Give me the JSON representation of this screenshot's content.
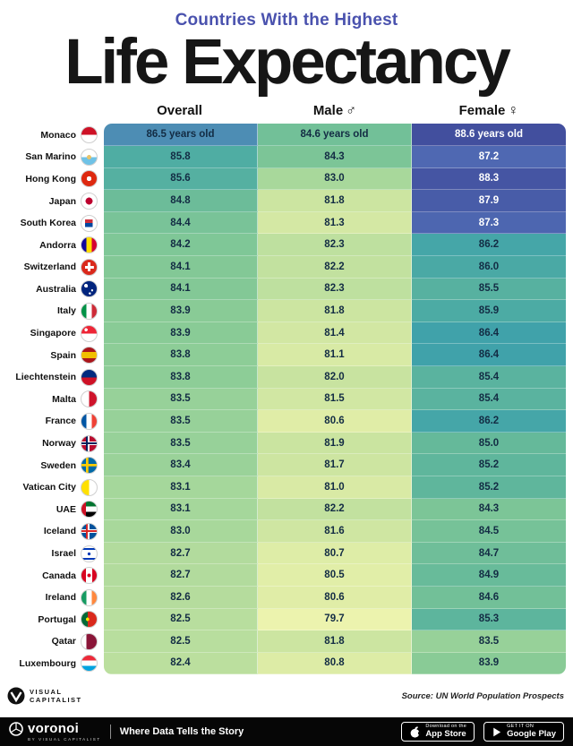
{
  "header": {
    "kicker": "Countries With the Highest",
    "title": "Life Expectancy"
  },
  "columns": [
    {
      "label": "Overall",
      "symbol": ""
    },
    {
      "label": "Male",
      "symbol": "♂"
    },
    {
      "label": "Female",
      "symbol": "♀"
    }
  ],
  "chart_data": {
    "type": "heatmap",
    "title": "Countries With the Highest Life Expectancy",
    "value_unit": "years old",
    "categories": [
      "Monaco",
      "San Marino",
      "Hong Kong",
      "Japan",
      "South Korea",
      "Andorra",
      "Switzerland",
      "Australia",
      "Italy",
      "Singapore",
      "Spain",
      "Liechtenstein",
      "Malta",
      "France",
      "Norway",
      "Sweden",
      "Vatican City",
      "UAE",
      "Iceland",
      "Israel",
      "Canada",
      "Ireland",
      "Portugal",
      "Qatar",
      "Luxembourg"
    ],
    "series": [
      {
        "name": "Overall",
        "values": [
          86.5,
          85.8,
          85.6,
          84.8,
          84.4,
          84.2,
          84.1,
          84.1,
          83.9,
          83.9,
          83.8,
          83.8,
          83.5,
          83.5,
          83.5,
          83.4,
          83.1,
          83.1,
          83.0,
          82.7,
          82.7,
          82.6,
          82.5,
          82.5,
          82.4
        ]
      },
      {
        "name": "Male",
        "values": [
          84.6,
          84.3,
          83.0,
          81.8,
          81.3,
          82.3,
          82.2,
          82.3,
          81.8,
          81.4,
          81.1,
          82.0,
          81.5,
          80.6,
          81.9,
          81.7,
          81.0,
          82.2,
          81.6,
          80.7,
          80.5,
          80.6,
          79.7,
          81.8,
          80.8
        ]
      },
      {
        "name": "Female",
        "values": [
          88.6,
          87.2,
          88.3,
          87.9,
          87.3,
          86.2,
          86.0,
          85.5,
          85.9,
          86.4,
          86.4,
          85.4,
          85.4,
          86.2,
          85.0,
          85.2,
          85.2,
          84.3,
          84.5,
          84.7,
          84.9,
          84.6,
          85.3,
          83.5,
          83.9
        ]
      }
    ],
    "color_scale": {
      "min": 79.7,
      "max": 88.6,
      "stops": [
        [
          79.7,
          "#ecf3ae"
        ],
        [
          80.8,
          "#ddeca6"
        ],
        [
          82.0,
          "#c8e3a0"
        ],
        [
          83.0,
          "#a8d89b"
        ],
        [
          84.0,
          "#86ca96"
        ],
        [
          85.0,
          "#65b99a"
        ],
        [
          85.8,
          "#4fada3"
        ],
        [
          86.3,
          "#42a4a9"
        ],
        [
          86.48,
          "#3ea1ab"
        ],
        [
          86.52,
          "#5b79bd"
        ],
        [
          87.3,
          "#4d66b0"
        ],
        [
          88.0,
          "#475aa7"
        ],
        [
          88.6,
          "#424f9e"
        ]
      ]
    }
  },
  "flags": {
    "Monaco": "linear-gradient(to bottom, #ce1126 50%, #ffffff 50%)",
    "San Marino": "radial-gradient(circle at 50% 50%, #e8c36a 20%, transparent 21%), linear-gradient(to bottom, #ffffff 50%, #6fc2e6 50%)",
    "Hong Kong": "radial-gradient(circle at 50% 50%, #ffffff 22%, transparent 23%), #de2910",
    "Japan": "radial-gradient(circle at 50% 50%, #bc002d 32%, transparent 33%), #ffffff",
    "South Korea": "linear-gradient(to bottom, #cd2e3a 50%, #0047a0 50%) center / 50% 50% no-repeat, #ffffff",
    "Andorra": "linear-gradient(to right, #10069f 33%, #fedd00 33% 67%, #d50032 67%)",
    "Switzerland": "linear-gradient(#ffffff, #ffffff) center / 18% 58% no-repeat, linear-gradient(#ffffff, #ffffff) center / 58% 18% no-repeat, #da291c",
    "Australia": "radial-gradient(circle at 30% 30%, #ffffff 12%, transparent 13%), radial-gradient(circle at 70% 60%, #ffffff 7%, transparent 8%), radial-gradient(circle at 55% 80%, #ffffff 7%, transparent 8%), #00247d",
    "Italy": "linear-gradient(to right, #009246 33%, #ffffff 33% 67%, #ce2b37 67%)",
    "Singapore": "radial-gradient(circle at 30% 25%, #ffffff 10%, transparent 11%), linear-gradient(to bottom, #ee2536 50%, #ffffff 50%)",
    "Spain": "linear-gradient(to bottom, #aa151b 28%, #f1bf00 28% 72%, #aa151b 72%)",
    "Liechtenstein": "linear-gradient(to bottom, #002b7f 50%, #ce1126 50%)",
    "Malta": "linear-gradient(to right, #ffffff 50%, #cf142b 50%)",
    "France": "linear-gradient(to right, #0055a4 33%, #ffffff 33% 67%, #ef4135 67%)",
    "Norway": "linear-gradient(#00205b, #00205b) 35% 0 / 12% 100% no-repeat, linear-gradient(#00205b, #00205b) 0 50% / 100% 12% no-repeat, linear-gradient(#ffffff, #ffffff) 35% 0 / 24% 100% no-repeat, linear-gradient(#ffffff, #ffffff) 0 50% / 100% 24% no-repeat, #ba0c2f",
    "Sweden": "linear-gradient(#fecc00, #fecc00) 35% 0 / 16% 100% no-repeat, linear-gradient(#fecc00, #fecc00) 0 50% / 100% 16% no-repeat, #006aa7",
    "Vatican City": "linear-gradient(to right, #ffe000 50%, #ffffff 50%)",
    "UAE": "linear-gradient(to right, #ce1126 30%, transparent 30%), linear-gradient(to bottom, #00732f 33%, #ffffff 33% 67%, #000000 67%)",
    "Iceland": "linear-gradient(#d72828, #d72828) 35% 0 / 12% 100% no-repeat, linear-gradient(#d72828, #d72828) 0 50% / 100% 12% no-repeat, linear-gradient(#ffffff, #ffffff) 35% 0 / 24% 100% no-repeat, linear-gradient(#ffffff, #ffffff) 0 50% / 100% 24% no-repeat, #02529c",
    "Israel": "radial-gradient(circle at 50% 50%, #0038b8 14%, transparent 15%), linear-gradient(to bottom, transparent 12%, #0038b8 12% 24%, transparent 24% 76%, #0038b8 76% 88%, transparent 88%), #ffffff",
    "Canada": "radial-gradient(circle at 50% 50%, #d80621 16%, transparent 17%), linear-gradient(to right, #d80621 28%, #ffffff 28% 72%, #d80621 72%)",
    "Ireland": "linear-gradient(to right, #169b62 33%, #ffffff 33% 67%, #ff883e 67%)",
    "Portugal": "radial-gradient(circle at 40% 50%, #ffe900 14%, transparent 15%), linear-gradient(to right, #046a38 40%, #da291c 40%)",
    "Qatar": "linear-gradient(to right, #ffffff 32%, #8a1538 32%)",
    "Luxembourg": "linear-gradient(to bottom, #ed2939 33%, #ffffff 33% 67%, #00a3e0 67%)"
  },
  "colors": {
    "kicker": "#4a52ae",
    "title": "#161616",
    "cell_text_dark": "#132c44",
    "cell_text_light": "#ffffff",
    "bar_bg": "#060606"
  },
  "footer": {
    "brand_line1": "VISUAL",
    "brand_line2": "CAPITALIST",
    "source": "Source: UN World Population Prospects",
    "voronoi": "voronoi",
    "voronoi_sub": "BY VISUAL CAPITALIST",
    "tagline": "Where Data Tells the Story",
    "appstore": {
      "line1": "Download on the",
      "line2": "App Store"
    },
    "googleplay": {
      "line1": "GET IT ON",
      "line2": "Google Play"
    }
  }
}
